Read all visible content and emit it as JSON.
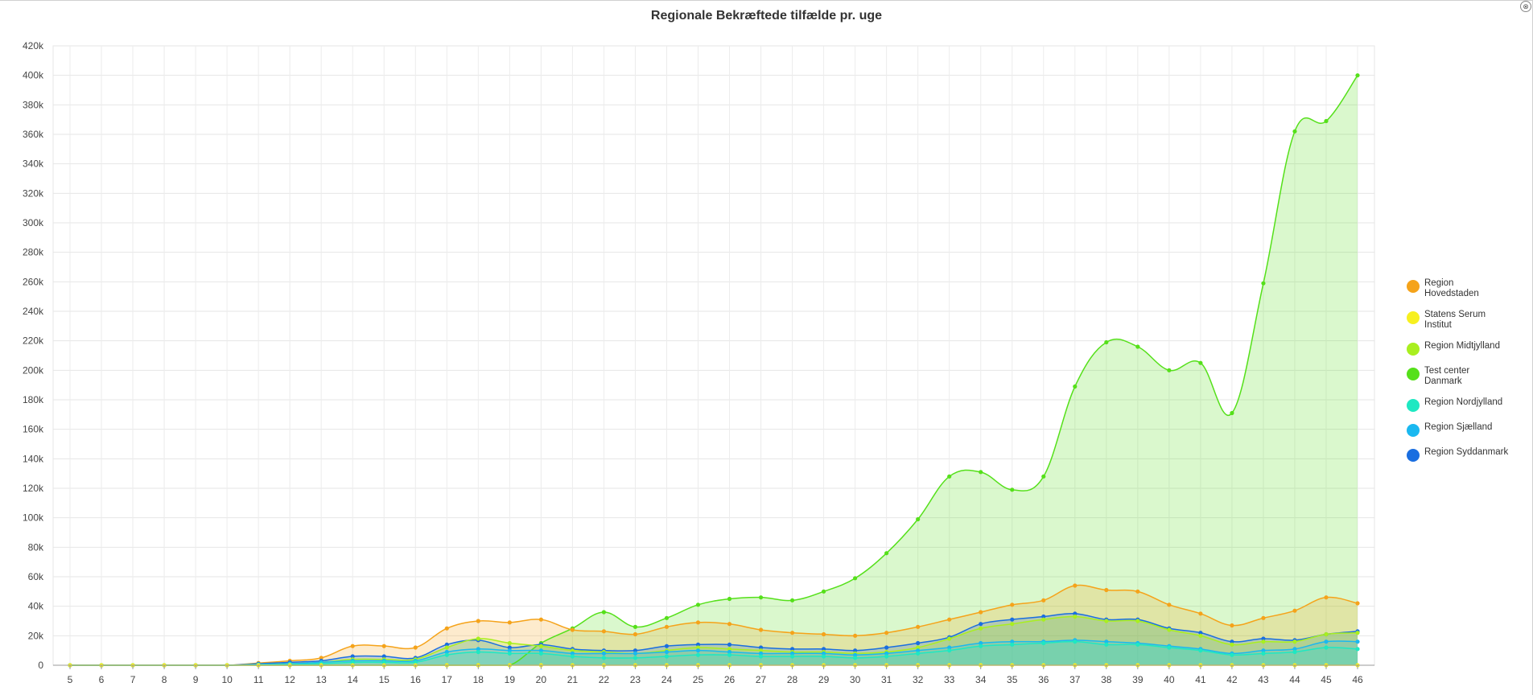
{
  "window": {
    "close_glyph": "⊗",
    "close_icon": "close-icon"
  },
  "chart_data": {
    "type": "area",
    "title": "Regionale Bekræftede tilfælde pr. uge",
    "xlabel": "",
    "ylabel": "",
    "grid": true,
    "legend_position": "right",
    "ylim": [
      0,
      420000
    ],
    "y_ticks": [
      "0",
      "20k",
      "40k",
      "60k",
      "80k",
      "100k",
      "120k",
      "140k",
      "160k",
      "180k",
      "200k",
      "220k",
      "240k",
      "260k",
      "280k",
      "300k",
      "320k",
      "340k",
      "360k",
      "380k",
      "400k",
      "420k"
    ],
    "categories": [
      "5",
      "6",
      "7",
      "8",
      "9",
      "10",
      "11",
      "12",
      "13",
      "14",
      "15",
      "16",
      "17",
      "18",
      "19",
      "20",
      "21",
      "22",
      "23",
      "24",
      "25",
      "26",
      "27",
      "28",
      "29",
      "30",
      "31",
      "32",
      "33",
      "34",
      "35",
      "36",
      "37",
      "38",
      "39",
      "40",
      "41",
      "42",
      "43",
      "44",
      "45",
      "46"
    ],
    "series": [
      {
        "name": "Region Hovedstaden",
        "color": "#f5a31a",
        "values": [
          0,
          0,
          0,
          0,
          0,
          0,
          1500,
          3000,
          5000,
          13000,
          13000,
          12000,
          25000,
          30000,
          29000,
          31000,
          24000,
          23000,
          21000,
          26000,
          29000,
          28000,
          24000,
          22000,
          21000,
          20000,
          22000,
          26000,
          31000,
          36000,
          41000,
          44000,
          54000,
          51000,
          50000,
          41000,
          35000,
          27000,
          32000,
          37000,
          46000,
          42000
        ]
      },
      {
        "name": "Statens Serum Institut",
        "color": "#f7f01f",
        "values": [
          0,
          0,
          0,
          0,
          0,
          0,
          0,
          0,
          0,
          0,
          0,
          0,
          0,
          0,
          0,
          0,
          0,
          0,
          0,
          0,
          0,
          0,
          0,
          0,
          0,
          0,
          0,
          0,
          0,
          0,
          0,
          0,
          0,
          0,
          0,
          0,
          0,
          0,
          0,
          0,
          0,
          0
        ]
      },
      {
        "name": "Region Midtjylland",
        "color": "#a9ef1f",
        "values": [
          0,
          0,
          0,
          0,
          0,
          0,
          500,
          1000,
          2000,
          4000,
          4000,
          4000,
          12000,
          18000,
          15000,
          13000,
          10000,
          9000,
          8000,
          10000,
          12000,
          11000,
          10000,
          9000,
          9000,
          8000,
          9000,
          12000,
          18000,
          25000,
          28000,
          31000,
          33000,
          30000,
          30000,
          24000,
          20000,
          14000,
          16000,
          16000,
          21000,
          22000
        ]
      },
      {
        "name": "Test center Danmark",
        "color": "#55e01a",
        "values": [
          0,
          0,
          0,
          0,
          0,
          0,
          0,
          0,
          0,
          0,
          0,
          0,
          0,
          0,
          0,
          15000,
          25000,
          36000,
          26000,
          32000,
          41000,
          45000,
          46000,
          44000,
          50000,
          59000,
          76000,
          99000,
          128000,
          131000,
          119000,
          128000,
          189000,
          219000,
          216000,
          200000,
          205000,
          171000,
          259000,
          362000,
          369000,
          400000
        ]
      },
      {
        "name": "Region Nordjylland",
        "color": "#1ee8c2",
        "values": [
          0,
          0,
          0,
          0,
          0,
          0,
          300,
          600,
          1000,
          2000,
          2000,
          2000,
          7000,
          9000,
          8000,
          8000,
          6000,
          5000,
          5000,
          6000,
          7000,
          7000,
          6000,
          6000,
          6000,
          5000,
          6000,
          8000,
          10000,
          13000,
          14000,
          15000,
          16000,
          14000,
          14000,
          12000,
          10000,
          7000,
          8000,
          9000,
          12000,
          11000
        ]
      },
      {
        "name": "Region Sjælland",
        "color": "#1ab8f0",
        "values": [
          0,
          0,
          0,
          0,
          0,
          0,
          500,
          1000,
          2000,
          3000,
          3000,
          3000,
          9000,
          11000,
          10000,
          10000,
          8000,
          8000,
          8000,
          9000,
          10000,
          9000,
          8000,
          8000,
          8000,
          7000,
          8000,
          10000,
          12000,
          15000,
          16000,
          16000,
          17000,
          16000,
          15000,
          13000,
          11000,
          8000,
          10000,
          11000,
          16000,
          16000
        ]
      },
      {
        "name": "Region Syddanmark",
        "color": "#1a6ee0",
        "values": [
          0,
          0,
          0,
          0,
          0,
          0,
          1000,
          2000,
          3000,
          6000,
          6000,
          5000,
          14000,
          17000,
          12000,
          14000,
          11000,
          10000,
          10000,
          13000,
          14000,
          14000,
          12000,
          11000,
          11000,
          10000,
          12000,
          15000,
          19000,
          28000,
          31000,
          33000,
          35000,
          31000,
          31000,
          25000,
          22000,
          16000,
          18000,
          17000,
          21000,
          23000
        ]
      }
    ]
  }
}
